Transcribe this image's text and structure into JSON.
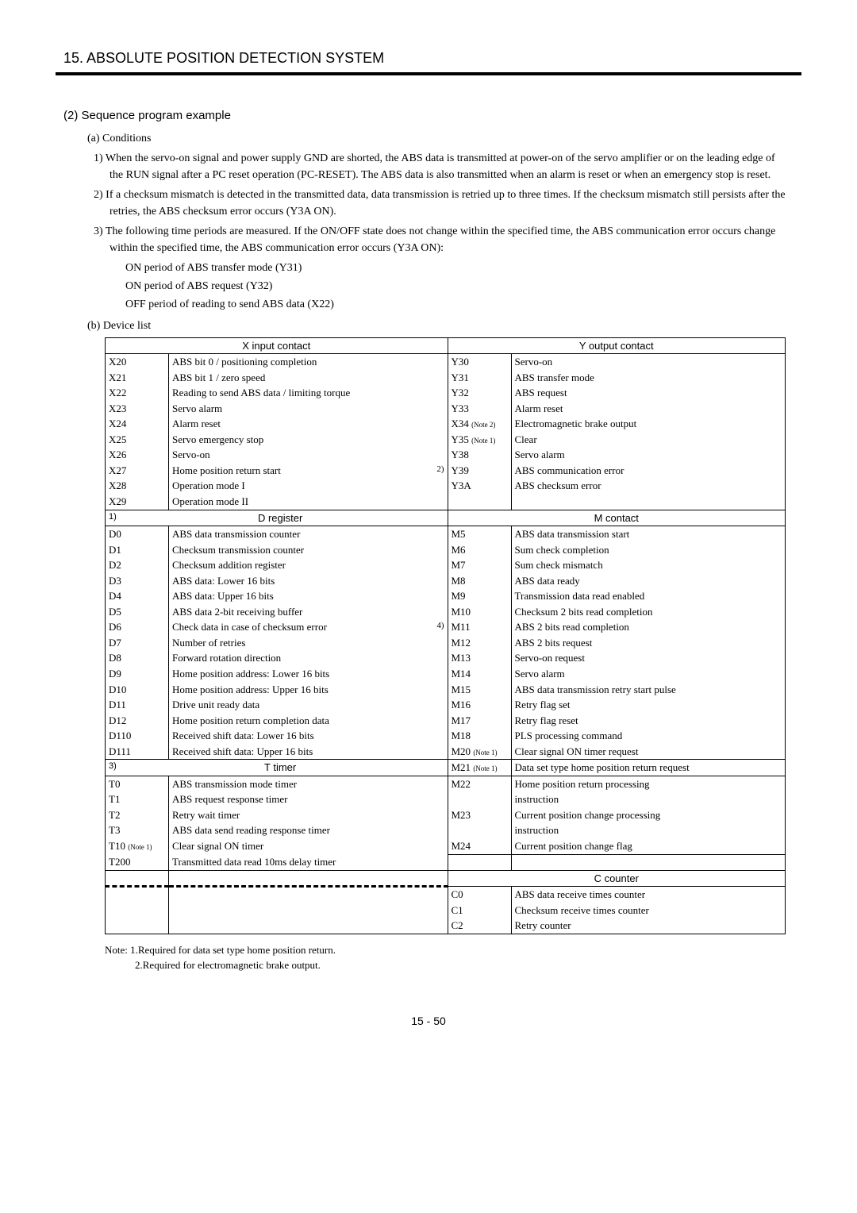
{
  "chapter": "15. ABSOLUTE POSITION DETECTION SYSTEM",
  "section2": "(2) Sequence program example",
  "subA": "(a) Conditions",
  "cond1": "1) When the servo-on signal and power supply GND are shorted, the ABS data is transmitted at power-on of the servo amplifier or on the leading edge of the RUN signal after a PC reset operation (PC-RESET). The ABS data is also transmitted when an alarm is reset or when an emergency stop is reset.",
  "cond2": "2) If a checksum mismatch is detected in the transmitted data, data transmission is retried up to three times. If the checksum mismatch still persists after the retries, the ABS checksum error occurs (Y3A ON).",
  "cond3": "3) The following time periods are measured. If the ON/OFF state does not change within the specified time, the ABS communication error occurs change within the specified time, the ABS communication error occurs (Y3A ON):",
  "cond3a": "ON period of ABS transfer mode (Y31)",
  "cond3b": "ON period of ABS request (Y32)",
  "cond3c": "OFF period of reading to send ABS data (X22)",
  "subB": "(b) Device list",
  "hdr": {
    "xinput": "X input contact",
    "youtput": "Y output contact",
    "dreg": "D register",
    "mcontact": "M contact",
    "ttimer": "T timer",
    "ccounter": "C counter"
  },
  "xrows": [
    [
      "X20",
      "ABS bit 0 / positioning completion"
    ],
    [
      "X21",
      "ABS bit 1 / zero speed"
    ],
    [
      "X22",
      "Reading to send ABS data / limiting torque"
    ],
    [
      "X23",
      "Servo alarm"
    ],
    [
      "X24",
      "Alarm reset"
    ],
    [
      "X25",
      "Servo emergency stop"
    ],
    [
      "X26",
      "Servo-on"
    ],
    [
      "X27",
      "Home position return start"
    ],
    [
      "X28",
      "Operation mode I"
    ],
    [
      "X29",
      "Operation mode II"
    ]
  ],
  "x27annot": "2)",
  "yrows": [
    [
      "Y30",
      "",
      "Servo-on"
    ],
    [
      "Y31",
      "",
      "ABS transfer mode"
    ],
    [
      "Y32",
      "",
      "ABS request"
    ],
    [
      "Y33",
      "",
      "Alarm reset"
    ],
    [
      "X34",
      "(Note 2)",
      "Electromagnetic brake output"
    ],
    [
      "Y35",
      "(Note 1)",
      "Clear"
    ],
    [
      "Y38",
      "",
      "Servo alarm"
    ],
    [
      "Y39",
      "",
      "ABS communication error"
    ],
    [
      "Y3A",
      "",
      "ABS checksum error"
    ],
    [
      "",
      "",
      ""
    ]
  ],
  "dannot": "1)",
  "drows": [
    [
      "D0",
      "ABS data transmission counter"
    ],
    [
      "D1",
      "Checksum transmission counter"
    ],
    [
      "D2",
      "Checksum addition register"
    ],
    [
      "D3",
      "ABS data: Lower 16 bits"
    ],
    [
      "D4",
      "ABS data: Upper 16 bits"
    ],
    [
      "D5",
      "ABS data 2-bit receiving buffer"
    ],
    [
      "D6",
      "Check data in case of checksum error"
    ],
    [
      "D7",
      "Number of retries"
    ],
    [
      "D8",
      "Forward rotation direction"
    ],
    [
      "D9",
      "Home position address: Lower 16 bits"
    ],
    [
      "D10",
      "Home position address: Upper 16 bits"
    ],
    [
      "D11",
      "Drive unit ready data"
    ],
    [
      "D12",
      "Home position return completion data"
    ],
    [
      "D110",
      "Received shift data: Lower 16 bits"
    ],
    [
      "D111",
      "Received shift data: Upper 16 bits"
    ]
  ],
  "d6annot": "4)",
  "mrows": [
    [
      "M5",
      "",
      "ABS data transmission start"
    ],
    [
      "M6",
      "",
      "Sum check completion"
    ],
    [
      "M7",
      "",
      "Sum check mismatch"
    ],
    [
      "M8",
      "",
      "ABS data ready"
    ],
    [
      "M9",
      "",
      "Transmission data read enabled"
    ],
    [
      "M10",
      "",
      "Checksum 2 bits read completion"
    ],
    [
      "M11",
      "",
      "ABS 2 bits read completion"
    ],
    [
      "M12",
      "",
      "ABS 2 bits request"
    ],
    [
      "M13",
      "",
      "Servo-on request"
    ],
    [
      "M14",
      "",
      "Servo alarm"
    ],
    [
      "M15",
      "",
      "ABS data transmission retry start pulse"
    ],
    [
      "M16",
      "",
      "Retry flag set"
    ],
    [
      "M17",
      "",
      "Retry flag reset"
    ],
    [
      "M18",
      "",
      "PLS processing command"
    ],
    [
      "M20",
      "(Note 1)",
      "Clear signal ON timer request"
    ],
    [
      "M21",
      "(Note 1)",
      "Data set type home position return request"
    ],
    [
      "M22",
      "",
      "Home position return processing instruction"
    ],
    [
      "M23",
      "",
      "Current position change processing instruction"
    ],
    [
      "M24",
      "",
      "Current position change flag"
    ]
  ],
  "tannot": "3)",
  "trows": [
    [
      "T0",
      "",
      "ABS transmission mode timer"
    ],
    [
      "T1",
      "",
      "ABS request response timer"
    ],
    [
      "T2",
      "",
      "Retry wait timer"
    ],
    [
      "T3",
      "",
      "ABS data send reading response timer"
    ],
    [
      "T10",
      "(Note 1)",
      "Clear signal ON timer"
    ],
    [
      "T200",
      "",
      "Transmitted data read 10ms delay timer"
    ]
  ],
  "crows": [
    [
      "C0",
      "ABS data receive times counter"
    ],
    [
      "C1",
      "Checksum receive times counter"
    ],
    [
      "C2",
      "Retry counter"
    ]
  ],
  "note1": "Note: 1.Required for data set type home position return.",
  "note2": "2.Required for electromagnetic brake output.",
  "pagenum": "15 -  50"
}
